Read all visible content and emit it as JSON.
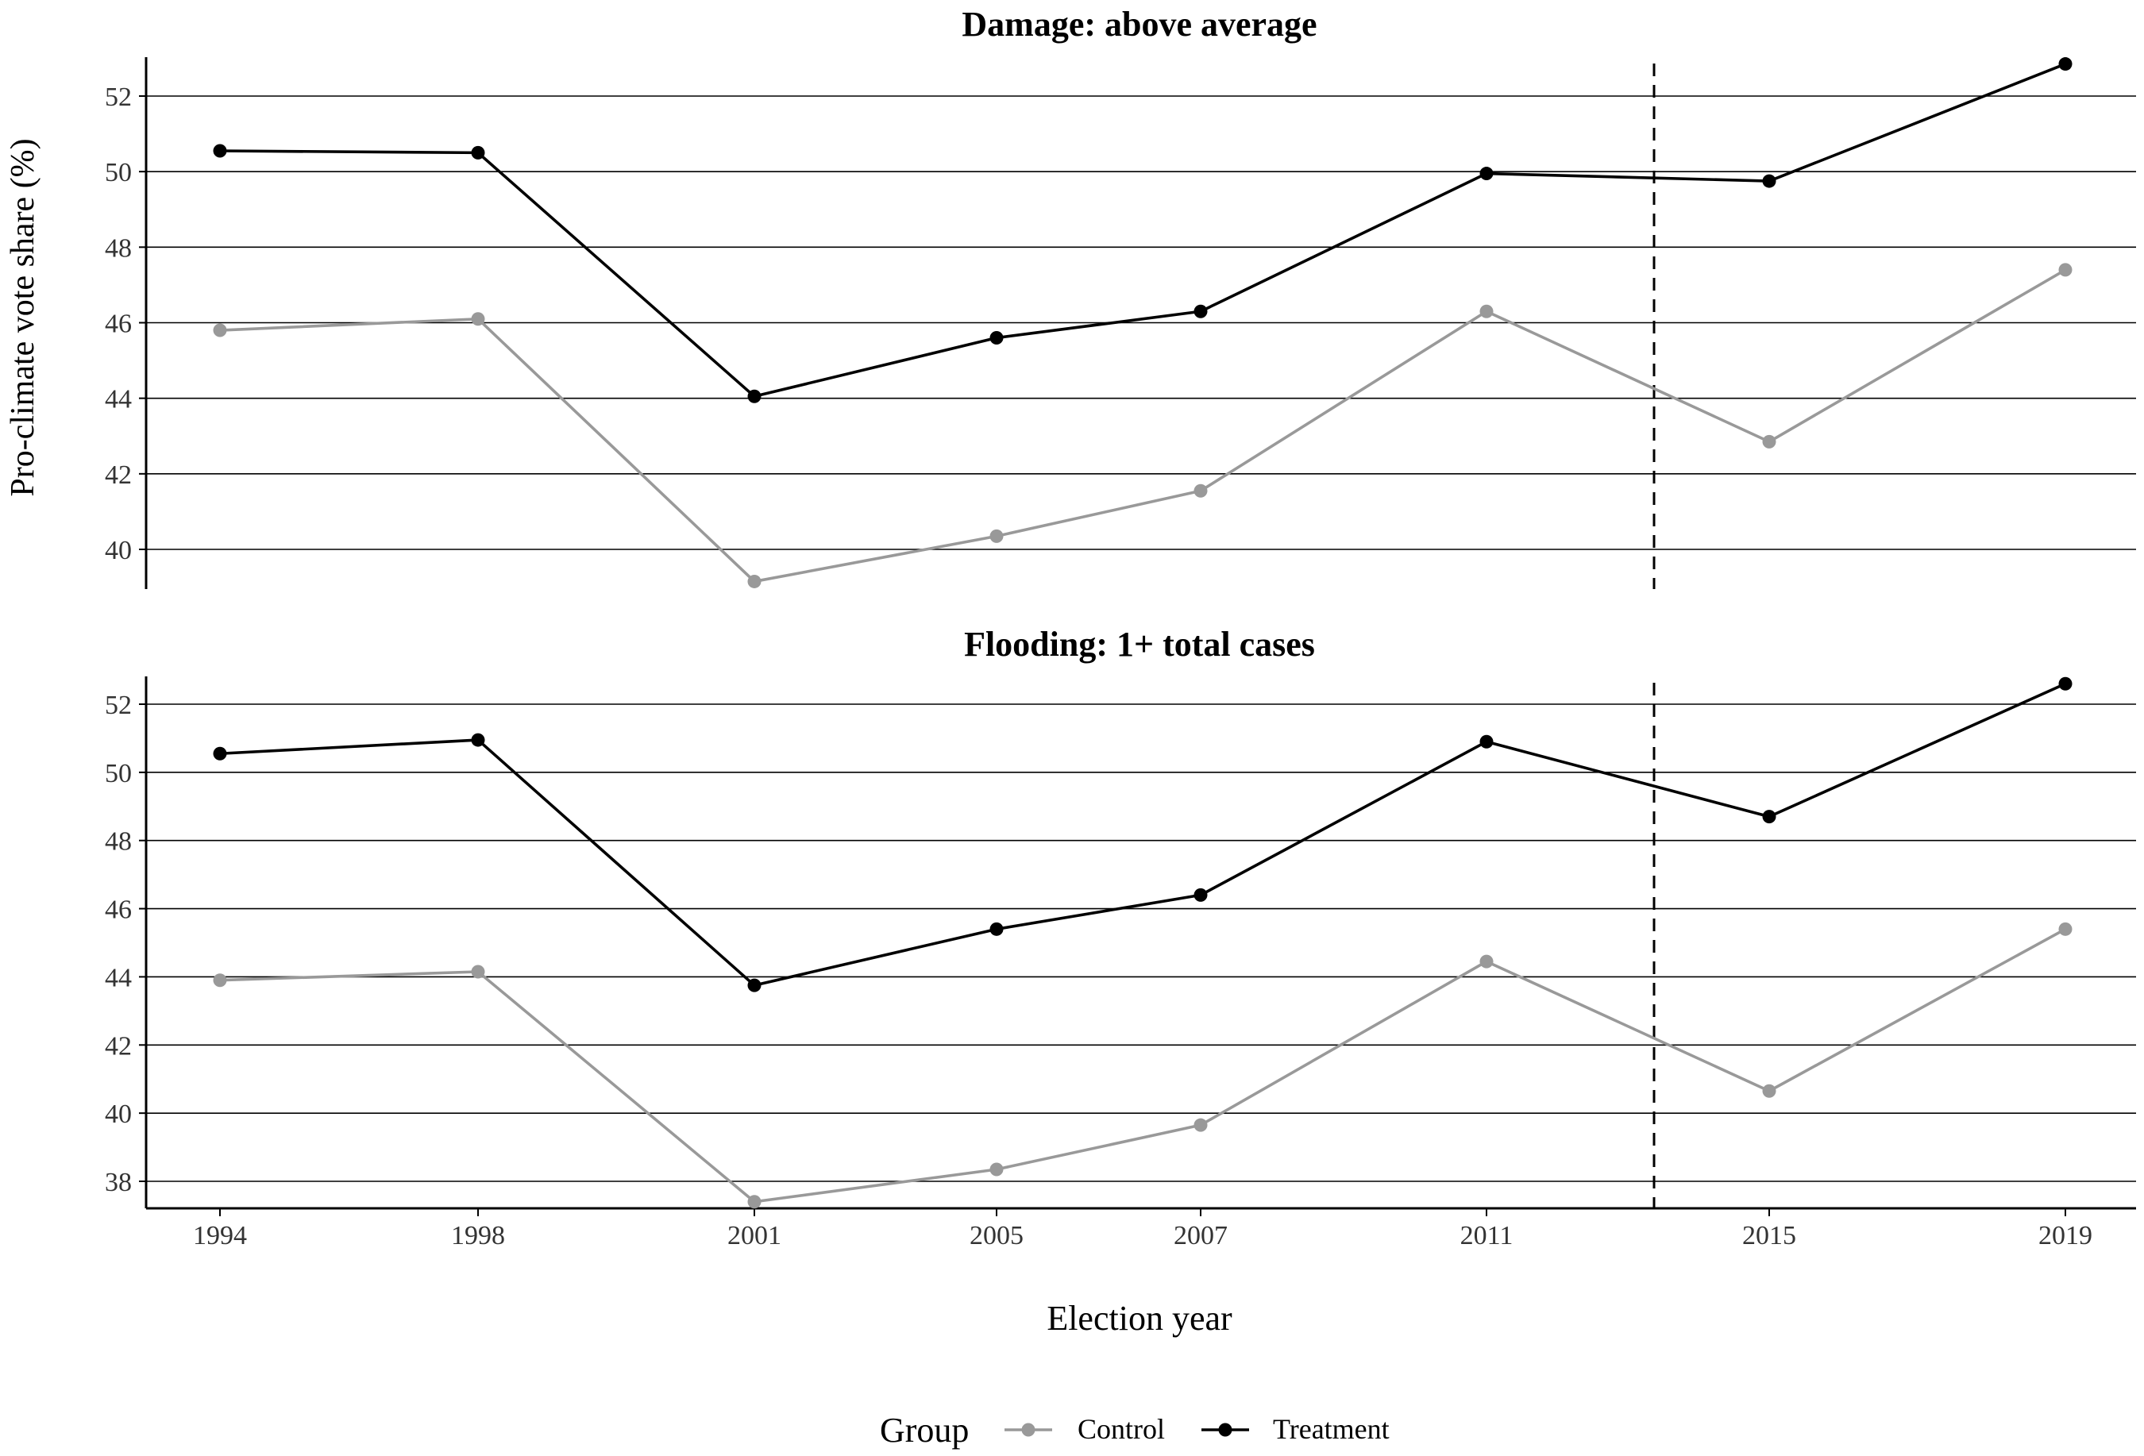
{
  "figure": {
    "ylabel": "Pro-climate vote share (%)",
    "xlabel": "Election year",
    "legend": {
      "title": "Group",
      "position": "bottom"
    }
  },
  "colors": {
    "Control": "#999999",
    "Treatment": "#000000",
    "grid": "#000000",
    "divider": "#000000"
  },
  "chart_data": [
    {
      "type": "line",
      "title": "Damage: above average",
      "categories": [
        "1994",
        "1998",
        "2001",
        "2005",
        "2007",
        "2011",
        "2015",
        "2019"
      ],
      "series": [
        {
          "name": "Control",
          "values": [
            45.8,
            46.1,
            39.15,
            40.35,
            41.55,
            46.3,
            42.85,
            47.4
          ]
        },
        {
          "name": "Treatment",
          "values": [
            50.55,
            50.5,
            44.05,
            45.6,
            46.3,
            49.95,
            49.75,
            52.85
          ]
        }
      ],
      "yticks": [
        40,
        42,
        44,
        46,
        48,
        50,
        52
      ],
      "ylim": [
        39.0,
        53.2
      ],
      "vline_after": "2011",
      "grid": "horizontal"
    },
    {
      "type": "line",
      "title": "Flooding: 1+ total cases",
      "categories": [
        "1994",
        "1998",
        "2001",
        "2005",
        "2007",
        "2011",
        "2015",
        "2019"
      ],
      "series": [
        {
          "name": "Control",
          "values": [
            43.9,
            44.15,
            37.4,
            38.35,
            39.65,
            44.45,
            40.65,
            45.4
          ]
        },
        {
          "name": "Treatment",
          "values": [
            50.55,
            50.95,
            43.75,
            45.4,
            46.4,
            50.9,
            48.7,
            52.6
          ]
        }
      ],
      "yticks": [
        38,
        40,
        42,
        44,
        46,
        48,
        50,
        52
      ],
      "ylim": [
        37.2,
        52.8
      ],
      "vline_after": "2011",
      "grid": "horizontal"
    }
  ]
}
